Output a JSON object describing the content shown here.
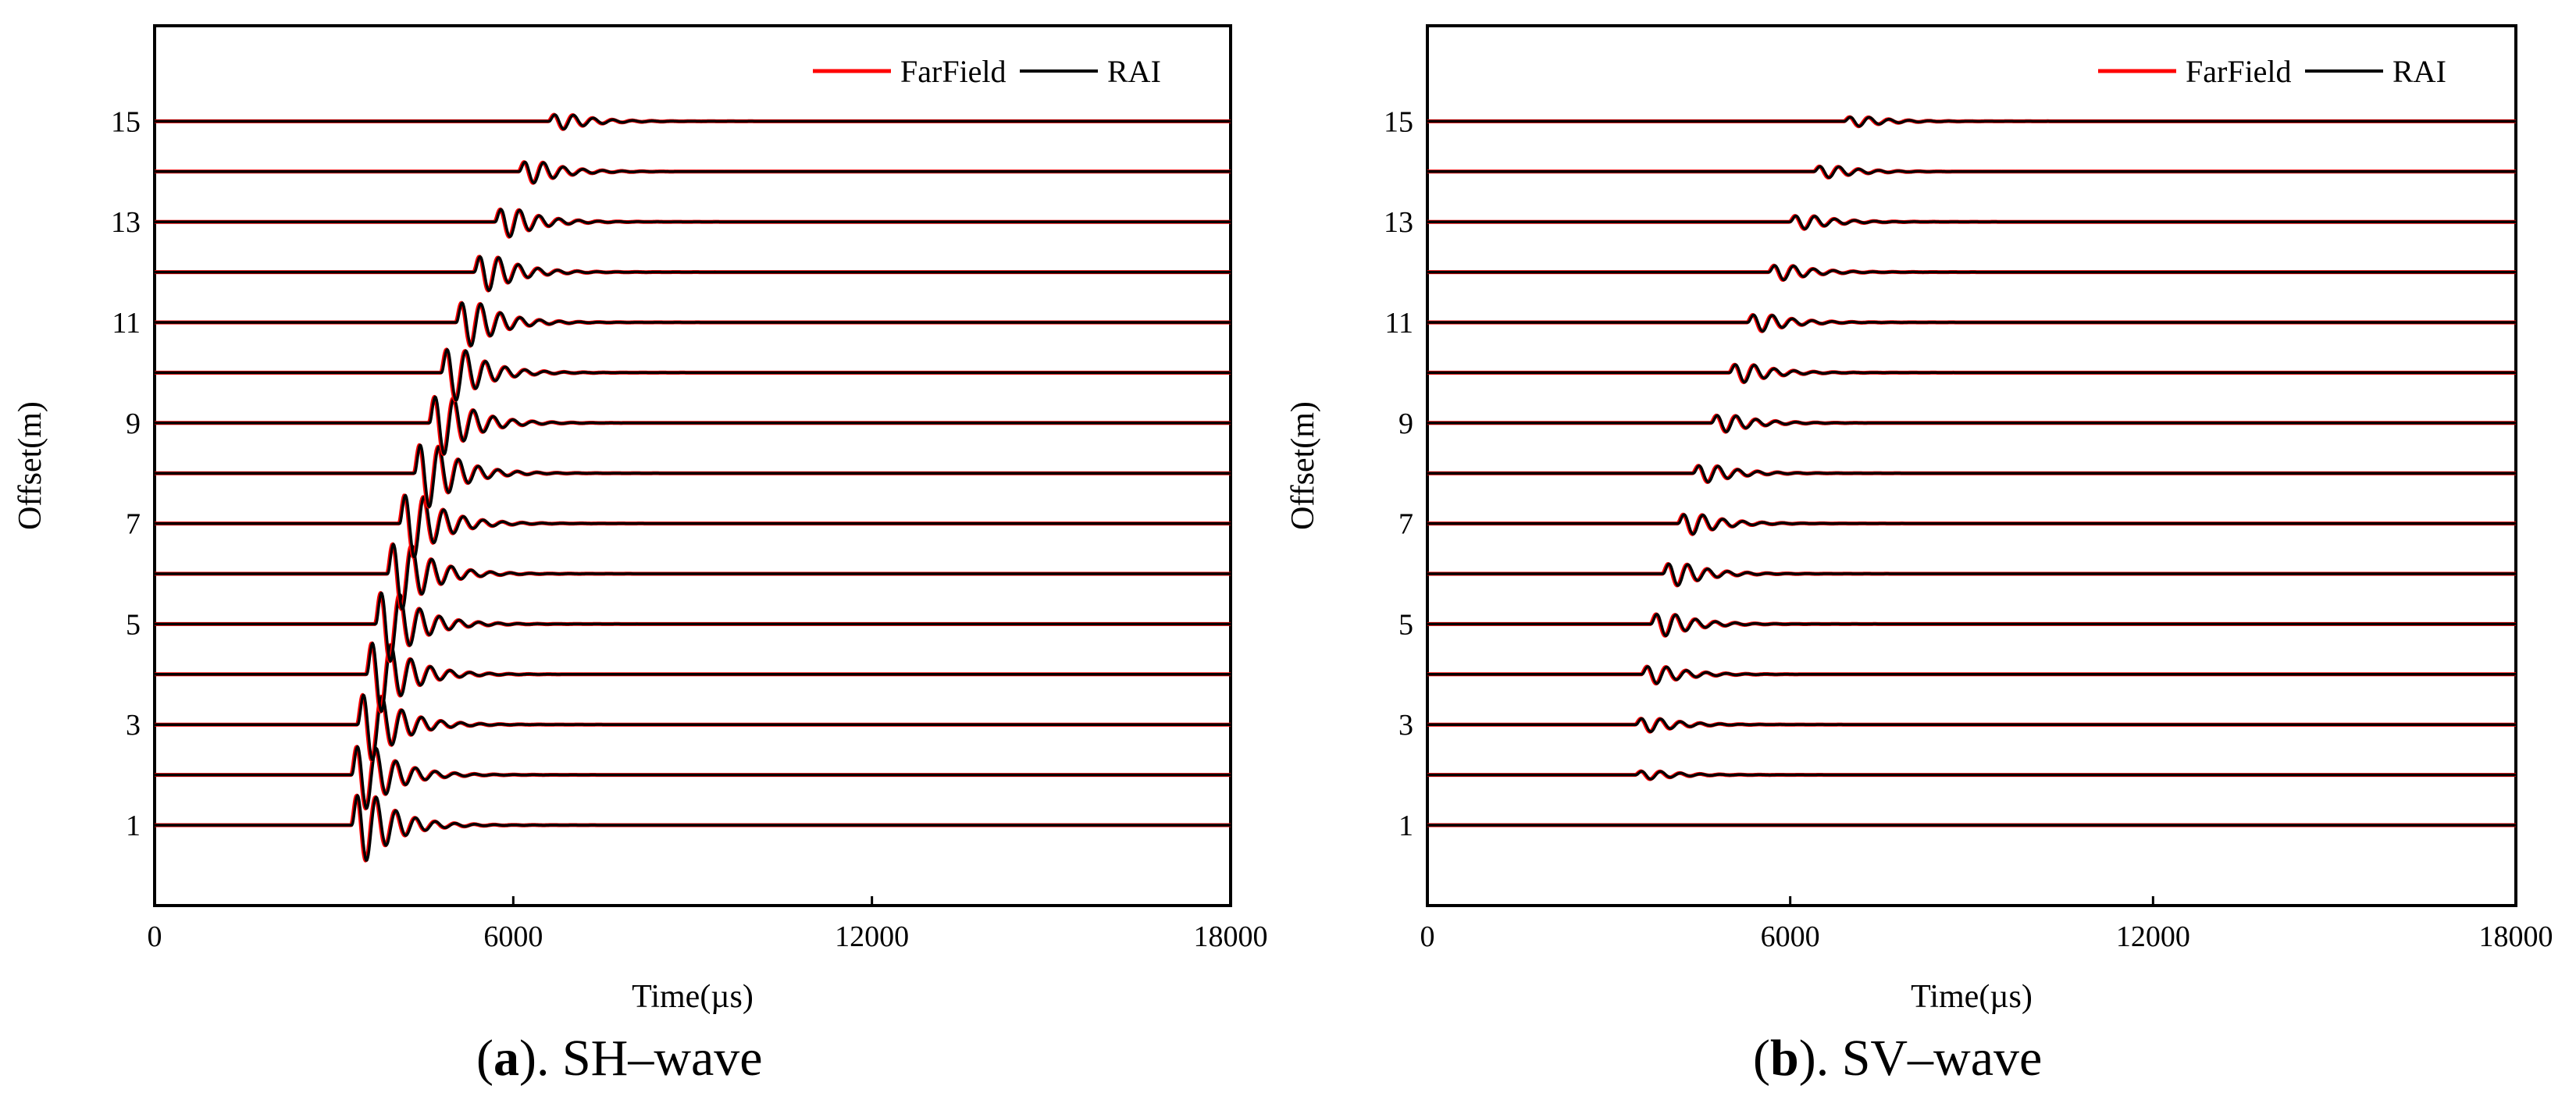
{
  "chart_data": [
    {
      "type": "line",
      "panel_letter": "a",
      "caption_suffix": ". SH–wave",
      "xlabel": "Time(µs)",
      "ylabel": "Offset(m)",
      "xlim": [
        0,
        18000
      ],
      "ylim": [
        -0.6,
        16.9
      ],
      "xticks": [
        0,
        6000,
        12000,
        18000
      ],
      "yticks": [
        1,
        3,
        5,
        7,
        9,
        11,
        13,
        15
      ],
      "series_names": [
        "FarField",
        "RAI"
      ],
      "series_colors": [
        "#ff0000",
        "#000000"
      ],
      "legend_position": "top-right",
      "offsets": [
        1,
        2,
        3,
        4,
        5,
        6,
        7,
        8,
        9,
        10,
        11,
        12,
        13,
        14,
        15
      ],
      "arrival_us": [
        3300,
        3300,
        3400,
        3550,
        3700,
        3900,
        4100,
        4350,
        4600,
        4800,
        5050,
        5350,
        5700,
        6100,
        6600
      ],
      "amplitude_m": [
        1.0,
        0.95,
        1.0,
        1.05,
        1.05,
        1.0,
        0.95,
        0.95,
        0.88,
        0.78,
        0.66,
        0.52,
        0.42,
        0.32,
        0.22
      ]
    },
    {
      "type": "line",
      "panel_letter": "b",
      "caption_suffix": ". SV–wave",
      "xlabel": "Time(µs)",
      "ylabel": "Offset(m)",
      "xlim": [
        0,
        18000
      ],
      "ylim": [
        -0.6,
        16.9
      ],
      "xticks": [
        0,
        6000,
        12000,
        18000
      ],
      "yticks": [
        1,
        3,
        5,
        7,
        9,
        11,
        13,
        15
      ],
      "series_names": [
        "FarField",
        "RAI"
      ],
      "series_colors": [
        "#ff0000",
        "#000000"
      ],
      "legend_position": "top-right",
      "offsets": [
        1,
        2,
        3,
        4,
        5,
        6,
        7,
        8,
        9,
        10,
        11,
        12,
        13,
        14,
        15
      ],
      "arrival_us": [
        0,
        3450,
        3450,
        3550,
        3700,
        3900,
        4150,
        4400,
        4700,
        5000,
        5300,
        5650,
        6000,
        6400,
        6900
      ],
      "amplitude_m": [
        0.0,
        0.12,
        0.2,
        0.26,
        0.33,
        0.33,
        0.3,
        0.25,
        0.25,
        0.27,
        0.25,
        0.22,
        0.2,
        0.17,
        0.14
      ]
    }
  ]
}
